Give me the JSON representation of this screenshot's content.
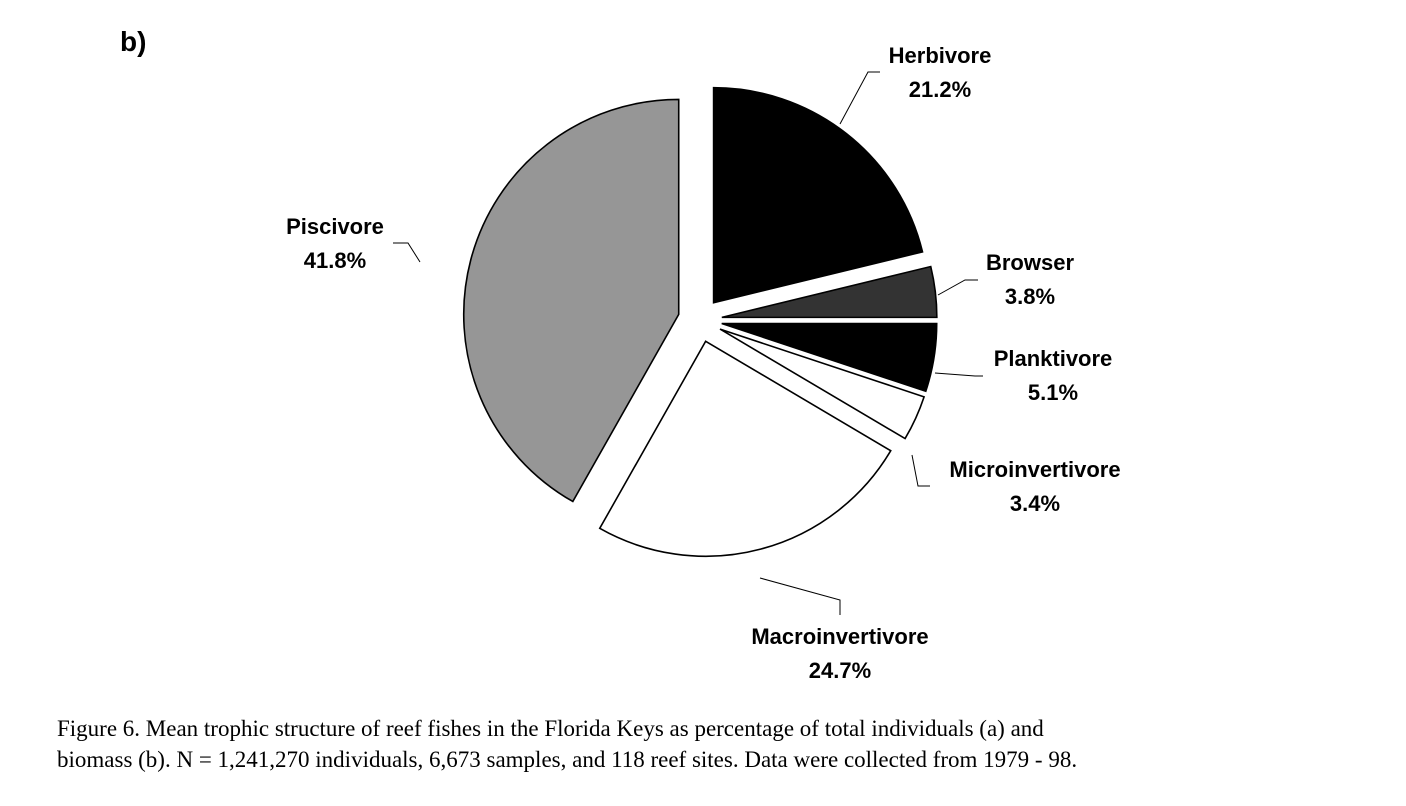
{
  "panel_label": "b)",
  "caption": {
    "line1": "Figure 6. Mean trophic structure of reef fishes in the Florida Keys as percentage of total individuals (a) and",
    "line2": "biomass (b).  N = 1,241,270 individuals, 6,673 samples,  and 118 reef sites.  Data were collected from 1979 - 98."
  },
  "chart_data": {
    "type": "pie",
    "exploded": true,
    "slices": [
      {
        "name": "Herbivore",
        "value": 21.2,
        "value_label": "21.2%",
        "color": "#000000"
      },
      {
        "name": "Browser",
        "value": 3.8,
        "value_label": "3.8%",
        "color": "#333333"
      },
      {
        "name": "Planktivore",
        "value": 5.1,
        "value_label": "5.1%",
        "color": "#000000"
      },
      {
        "name": "Microinvertivore",
        "value": 3.4,
        "value_label": "3.4%",
        "color": "#ffffff"
      },
      {
        "name": "Macroinvertivore",
        "value": 24.7,
        "value_label": "24.7%",
        "color": "#ffffff"
      },
      {
        "name": "Piscivore",
        "value": 41.8,
        "value_label": "41.8%",
        "color": "#969696"
      }
    ]
  }
}
